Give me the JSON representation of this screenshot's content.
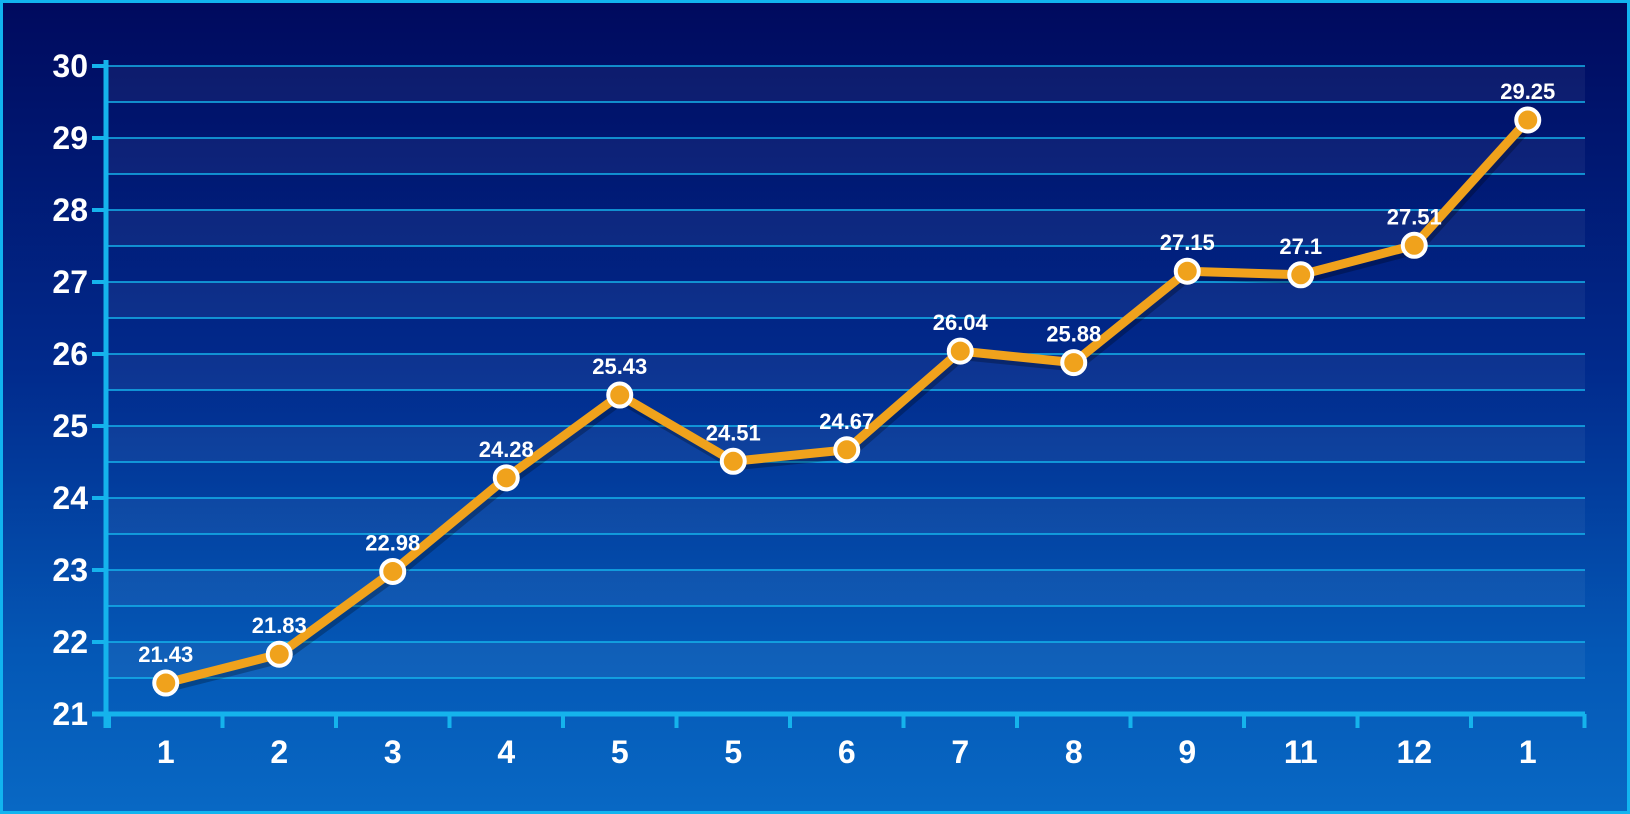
{
  "chart_data": {
    "type": "line",
    "title": "",
    "xlabel": "",
    "ylabel": "",
    "categories": [
      "1",
      "2",
      "3",
      "4",
      "5",
      "5",
      "6",
      "7",
      "8",
      "9",
      "11",
      "12",
      "1"
    ],
    "series": [
      {
        "values": [
          21.43,
          21.83,
          22.98,
          24.28,
          25.43,
          24.51,
          24.67,
          26.04,
          25.88,
          27.15,
          27.1,
          27.51,
          29.25
        ],
        "labels": [
          "21.43",
          "21.83",
          "22.98",
          "24.28",
          "25.43",
          "24.51",
          "24.67",
          "26.04",
          "25.88",
          "27.15",
          "27.1",
          "27.51",
          "29.25"
        ]
      }
    ],
    "ylim": [
      21,
      30
    ],
    "yticks": [
      "21",
      "22",
      "23",
      "24",
      "25",
      "26",
      "27",
      "28",
      "29",
      "30"
    ],
    "grid": true,
    "legend": "none",
    "colors": {
      "line": "#f0a21c",
      "marker_fill": "#f0a21c",
      "marker_stroke": "#ffffff",
      "grid": "#15b3ec",
      "axis": "#15b3ec",
      "text": "#ffffff",
      "background_top": "#000a5e",
      "background_bottom": "#0868c4",
      "border": "#11b4f0"
    }
  }
}
